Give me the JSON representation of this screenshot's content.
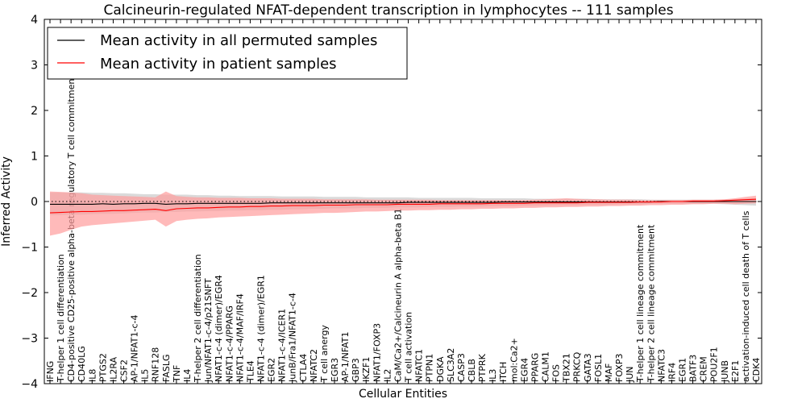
{
  "chart_data": {
    "type": "line",
    "title": "Calcineurin-regulated NFAT-dependent transcription in lymphocytes -- 111 samples",
    "xlabel": "Cellular Entities",
    "ylabel": "Inferred Activity",
    "ylim": [
      -4,
      4
    ],
    "yticks": [
      -4,
      -3,
      -2,
      -1,
      0,
      1,
      2,
      3,
      4
    ],
    "ytick_labels": [
      "−4",
      "−3",
      "−2",
      "−1",
      "0",
      "1",
      "2",
      "3",
      "4"
    ],
    "legend_position": "top-left",
    "categories": [
      "IFNG",
      "T-helper 1 cell differentiation",
      "CD4-positive CD25-positive alpha-beta regulatory T cell commitment",
      "CD40LG",
      "IL8",
      "PTGS2",
      "IL2RA",
      "CSF2",
      "AP-1/NFAT1-c-4",
      "IL5",
      "RNF128",
      "FASLG",
      "TNF",
      "IL4",
      "T-helper 2 cell differentiation",
      "Jun/NFAT1-c-4/p21SNFT",
      "NFAT1-c-4 (dimer)/EGR4",
      "NFAT1-c-4/PPARG",
      "NFAT1-c-4/MAF/IRF4",
      "TLE4",
      "NFAT1-c-4 (dimer)/EGR1",
      "EGR2",
      "NFAT1-c-4/ICER1",
      "JunB/Fra1/NFAT1-c-4",
      "CTLA4",
      "NFATC2",
      "T cell anergy",
      "EGR3",
      "AP-1/NFAT1",
      "GBP3",
      "IKZF1",
      "NFAT1/FOXP3",
      "IL2",
      "CaM/Ca2+/Calcineurin A alpha-beta B1",
      "T cell activation",
      "NFATC1",
      "PTPN1",
      "DGKA",
      "SLC3A2",
      "CASP3",
      "CBLB",
      "PTPRK",
      "IL3",
      "ITCH",
      "mol:Ca2+",
      "EGR4",
      "PPARG",
      "CALM1",
      "FOS",
      "TBX21",
      "PRKCQ",
      "GATA3",
      "FOSL1",
      "MAF",
      "FOXP3",
      "JUN",
      "T-helper 1 cell lineage commitment",
      "T-helper 2 cell lineage commitment",
      "NFATC3",
      "IRF4",
      "EGR1",
      "BATF3",
      "CREM",
      "POU2F1",
      "JUNB",
      "E2F1",
      "activation-induced cell death of T cells",
      "CDK4"
    ],
    "series": [
      {
        "name": "Mean activity in all permuted samples",
        "color": "#000000",
        "band_color": "#bbbbbb",
        "values": [
          -0.06,
          -0.06,
          -0.06,
          -0.06,
          -0.06,
          -0.05,
          -0.06,
          -0.05,
          -0.05,
          -0.04,
          -0.04,
          -0.06,
          -0.05,
          -0.05,
          -0.04,
          -0.04,
          -0.04,
          -0.04,
          -0.04,
          -0.04,
          -0.04,
          -0.03,
          -0.03,
          -0.03,
          -0.03,
          -0.03,
          -0.03,
          -0.03,
          -0.03,
          -0.03,
          -0.03,
          -0.03,
          -0.03,
          -0.03,
          -0.02,
          -0.02,
          -0.02,
          -0.02,
          -0.02,
          -0.02,
          -0.02,
          -0.02,
          -0.02,
          -0.01,
          -0.01,
          -0.01,
          -0.01,
          -0.01,
          -0.01,
          -0.01,
          -0.01,
          -0.01,
          -0.01,
          -0.01,
          -0.01,
          -0.01,
          -0.01,
          -0.01,
          0.0,
          0.0,
          0.0,
          0.0,
          0.0,
          0.0,
          0.0,
          0.0,
          0.0,
          0.0
        ],
        "upper": [
          0.2,
          0.2,
          0.2,
          0.2,
          0.19,
          0.19,
          0.18,
          0.18,
          0.17,
          0.16,
          0.16,
          0.15,
          0.15,
          0.15,
          0.14,
          0.14,
          0.13,
          0.13,
          0.12,
          0.12,
          0.12,
          0.12,
          0.11,
          0.11,
          0.11,
          0.11,
          0.1,
          0.1,
          0.1,
          0.1,
          0.09,
          0.09,
          0.09,
          0.09,
          0.09,
          0.08,
          0.08,
          0.08,
          0.08,
          0.08,
          0.08,
          0.07,
          0.07,
          0.07,
          0.07,
          0.07,
          0.06,
          0.06,
          0.06,
          0.06,
          0.06,
          0.06,
          0.05,
          0.05,
          0.05,
          0.05,
          0.05,
          0.04,
          0.04,
          0.04,
          0.04,
          0.04,
          0.04,
          0.04,
          0.04,
          0.05,
          0.06,
          0.07
        ],
        "lower": [
          -0.3,
          -0.3,
          -0.29,
          -0.29,
          -0.28,
          -0.27,
          -0.27,
          -0.26,
          -0.25,
          -0.24,
          -0.24,
          -0.23,
          -0.23,
          -0.22,
          -0.22,
          -0.21,
          -0.21,
          -0.2,
          -0.2,
          -0.19,
          -0.19,
          -0.18,
          -0.18,
          -0.17,
          -0.17,
          -0.16,
          -0.16,
          -0.15,
          -0.15,
          -0.15,
          -0.14,
          -0.14,
          -0.14,
          -0.13,
          -0.13,
          -0.13,
          -0.12,
          -0.12,
          -0.12,
          -0.11,
          -0.11,
          -0.11,
          -0.1,
          -0.1,
          -0.1,
          -0.09,
          -0.09,
          -0.09,
          -0.08,
          -0.08,
          -0.08,
          -0.07,
          -0.07,
          -0.07,
          -0.06,
          -0.06,
          -0.06,
          -0.05,
          -0.05,
          -0.05,
          -0.05,
          -0.05,
          -0.05,
          -0.05,
          -0.06,
          -0.07,
          -0.08,
          -0.09
        ]
      },
      {
        "name": "Mean activity in patient samples",
        "color": "#ff0000",
        "band_color": "#ff9c9c",
        "values": [
          -0.25,
          -0.24,
          -0.23,
          -0.22,
          -0.22,
          -0.21,
          -0.2,
          -0.2,
          -0.19,
          -0.18,
          -0.17,
          -0.2,
          -0.16,
          -0.15,
          -0.14,
          -0.14,
          -0.13,
          -0.12,
          -0.12,
          -0.11,
          -0.11,
          -0.1,
          -0.1,
          -0.09,
          -0.09,
          -0.09,
          -0.08,
          -0.08,
          -0.08,
          -0.07,
          -0.07,
          -0.07,
          -0.07,
          -0.06,
          -0.06,
          -0.06,
          -0.06,
          -0.05,
          -0.05,
          -0.05,
          -0.05,
          -0.05,
          -0.04,
          -0.04,
          -0.04,
          -0.04,
          -0.03,
          -0.03,
          -0.03,
          -0.03,
          -0.03,
          -0.02,
          -0.02,
          -0.02,
          -0.02,
          -0.02,
          -0.01,
          -0.01,
          -0.01,
          0.0,
          0.0,
          0.01,
          0.01,
          0.01,
          0.02,
          0.03,
          0.04,
          0.05
        ],
        "upper": [
          0.22,
          0.21,
          0.2,
          0.18,
          0.15,
          0.14,
          0.13,
          0.12,
          0.11,
          0.1,
          0.09,
          0.22,
          0.12,
          0.1,
          0.09,
          0.09,
          0.08,
          0.08,
          0.08,
          0.07,
          0.07,
          0.07,
          0.06,
          0.06,
          0.06,
          0.06,
          0.05,
          0.05,
          0.05,
          0.05,
          0.05,
          0.04,
          0.04,
          0.04,
          0.04,
          0.04,
          0.04,
          0.03,
          0.03,
          0.03,
          0.03,
          0.03,
          0.03,
          0.03,
          0.03,
          0.03,
          0.04,
          0.05,
          0.06,
          0.07,
          0.06,
          0.05,
          0.05,
          0.04,
          0.04,
          0.04,
          0.03,
          0.03,
          0.03,
          0.03,
          0.03,
          0.04,
          0.04,
          0.04,
          0.05,
          0.07,
          0.1,
          0.13
        ],
        "lower": [
          -0.75,
          -0.7,
          -0.62,
          -0.55,
          -0.52,
          -0.5,
          -0.48,
          -0.46,
          -0.44,
          -0.42,
          -0.4,
          -0.55,
          -0.43,
          -0.4,
          -0.38,
          -0.37,
          -0.35,
          -0.34,
          -0.33,
          -0.32,
          -0.31,
          -0.3,
          -0.29,
          -0.28,
          -0.27,
          -0.26,
          -0.25,
          -0.25,
          -0.24,
          -0.23,
          -0.22,
          -0.22,
          -0.21,
          -0.2,
          -0.2,
          -0.19,
          -0.19,
          -0.18,
          -0.18,
          -0.17,
          -0.17,
          -0.16,
          -0.16,
          -0.15,
          -0.15,
          -0.14,
          -0.14,
          -0.13,
          -0.13,
          -0.12,
          -0.12,
          -0.11,
          -0.11,
          -0.1,
          -0.1,
          -0.09,
          -0.09,
          -0.08,
          -0.08,
          -0.07,
          -0.07,
          -0.06,
          -0.06,
          -0.05,
          -0.05,
          -0.06,
          -0.05,
          -0.04
        ]
      }
    ],
    "baseline": 0
  }
}
